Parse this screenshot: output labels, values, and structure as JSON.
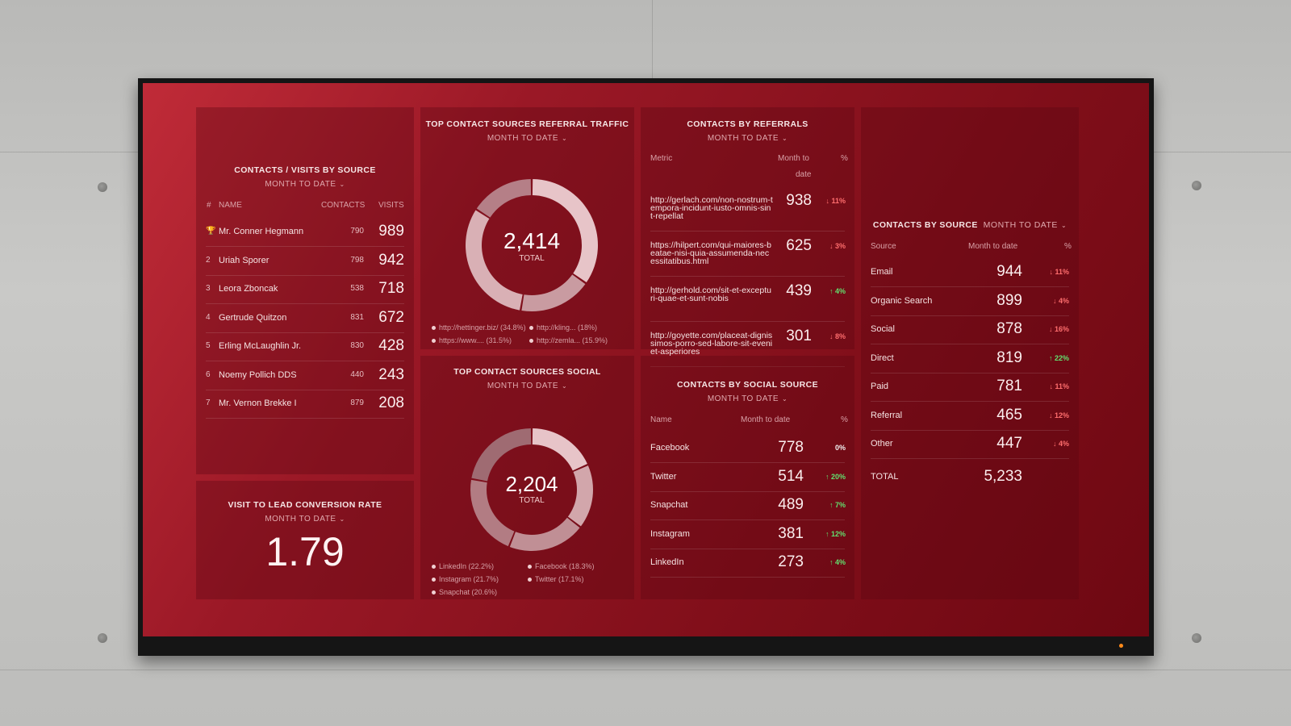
{
  "visits_by_source": {
    "title": "CONTACTS / VISITS BY SOURCE",
    "period": "MONTH TO DATE",
    "columns": {
      "rank": "#",
      "name": "NAME",
      "contacts": "CONTACTS",
      "visits": "VISITS"
    },
    "rows": [
      {
        "rank": "🏆",
        "name": "Mr. Conner Hegmann",
        "contacts": "790",
        "visits": "989"
      },
      {
        "rank": "2",
        "name": "Uriah Sporer",
        "contacts": "798",
        "visits": "942"
      },
      {
        "rank": "3",
        "name": "Leora Zboncak",
        "contacts": "538",
        "visits": "718"
      },
      {
        "rank": "4",
        "name": "Gertrude Quitzon",
        "contacts": "831",
        "visits": "672"
      },
      {
        "rank": "5",
        "name": "Erling McLaughlin Jr.",
        "contacts": "830",
        "visits": "428"
      },
      {
        "rank": "6",
        "name": "Noemy Pollich DDS",
        "contacts": "440",
        "visits": "243"
      },
      {
        "rank": "7",
        "name": "Mr. Vernon Brekke I",
        "contacts": "879",
        "visits": "208"
      }
    ]
  },
  "conversion": {
    "title": "VISIT TO LEAD CONVERSION RATE",
    "period": "MONTH TO DATE",
    "value": "1.79"
  },
  "referral_traffic": {
    "title": "TOP CONTACT SOURCES REFERRAL TRAFFIC",
    "period": "MONTH TO DATE",
    "total": "2,414",
    "total_label": "TOTAL",
    "legend": [
      "http://hettinger.biz/ (34.8%)",
      "http://kling... (18%)",
      "https://www.... (31.5%)",
      "http://zemla... (15.9%)"
    ],
    "shares": [
      34.8,
      18,
      31.5,
      15.9
    ]
  },
  "social_traffic": {
    "title": "TOP CONTACT SOURCES SOCIAL",
    "period": "MONTH TO DATE",
    "total": "2,204",
    "total_label": "TOTAL",
    "legend": [
      "LinkedIn (22.2%)",
      "Facebook (18.3%)",
      "Instagram (21.7%)",
      "Twitter (17.1%)",
      "Snapchat (20.6%)"
    ],
    "shares": [
      18.3,
      17.1,
      20.6,
      21.7,
      22.2
    ]
  },
  "by_referrals": {
    "title": "CONTACTS BY REFERRALS",
    "period": "MONTH TO DATE",
    "columns": {
      "metric": "Metric",
      "mtd_1": "Month to",
      "mtd_2": "date",
      "pct": "%"
    },
    "rows": [
      {
        "url": "http://gerlach.com/non-nostrum-tempora-incidunt-iusto-omnis-sint-repellat",
        "value": "938",
        "pct": "↓ 11%",
        "dir": "down"
      },
      {
        "url": "https://hilpert.com/qui-maiores-beatae-nisi-quia-assumenda-necessitatibus.html",
        "value": "625",
        "pct": "↓ 3%",
        "dir": "down"
      },
      {
        "url": "http://gerhold.com/sit-et-excepturi-quae-et-sunt-nobis",
        "value": "439",
        "pct": "↑ 4%",
        "dir": "up"
      },
      {
        "url": "http://goyette.com/placeat-dignissimos-porro-sed-labore-sit-eveniet-asperiores",
        "value": "301",
        "pct": "↓ 8%",
        "dir": "down"
      }
    ]
  },
  "by_social": {
    "title": "CONTACTS BY SOCIAL SOURCE",
    "period": "MONTH TO DATE",
    "columns": {
      "name": "Name",
      "mtd": "Month to date",
      "pct": "%"
    },
    "rows": [
      {
        "name": "Facebook",
        "value": "778",
        "pct": "0%",
        "dir": "flat"
      },
      {
        "name": "Twitter",
        "value": "514",
        "pct": "↑ 20%",
        "dir": "up"
      },
      {
        "name": "Snapchat",
        "value": "489",
        "pct": "↑ 7%",
        "dir": "up"
      },
      {
        "name": "Instagram",
        "value": "381",
        "pct": "↑ 12%",
        "dir": "up"
      },
      {
        "name": "LinkedIn",
        "value": "273",
        "pct": "↑ 4%",
        "dir": "up"
      }
    ]
  },
  "by_source": {
    "title": "CONTACTS BY SOURCE",
    "period": "MONTH TO DATE",
    "columns": {
      "source": "Source",
      "mtd": "Month to date",
      "pct": "%"
    },
    "rows": [
      {
        "name": "Email",
        "value": "944",
        "pct": "↓ 11%",
        "dir": "down"
      },
      {
        "name": "Organic Search",
        "value": "899",
        "pct": "↓ 4%",
        "dir": "down"
      },
      {
        "name": "Social",
        "value": "878",
        "pct": "↓ 16%",
        "dir": "down"
      },
      {
        "name": "Direct",
        "value": "819",
        "pct": "↑ 22%",
        "dir": "up"
      },
      {
        "name": "Paid",
        "value": "781",
        "pct": "↓ 11%",
        "dir": "down"
      },
      {
        "name": "Referral",
        "value": "465",
        "pct": "↓ 12%",
        "dir": "down"
      },
      {
        "name": "Other",
        "value": "447",
        "pct": "↓ 4%",
        "dir": "down"
      }
    ],
    "total_label": "TOTAL",
    "total_value": "5,233"
  },
  "colors": {
    "up": "#62e06f",
    "down": "#ff6e6e",
    "screen": "#8e1420"
  }
}
